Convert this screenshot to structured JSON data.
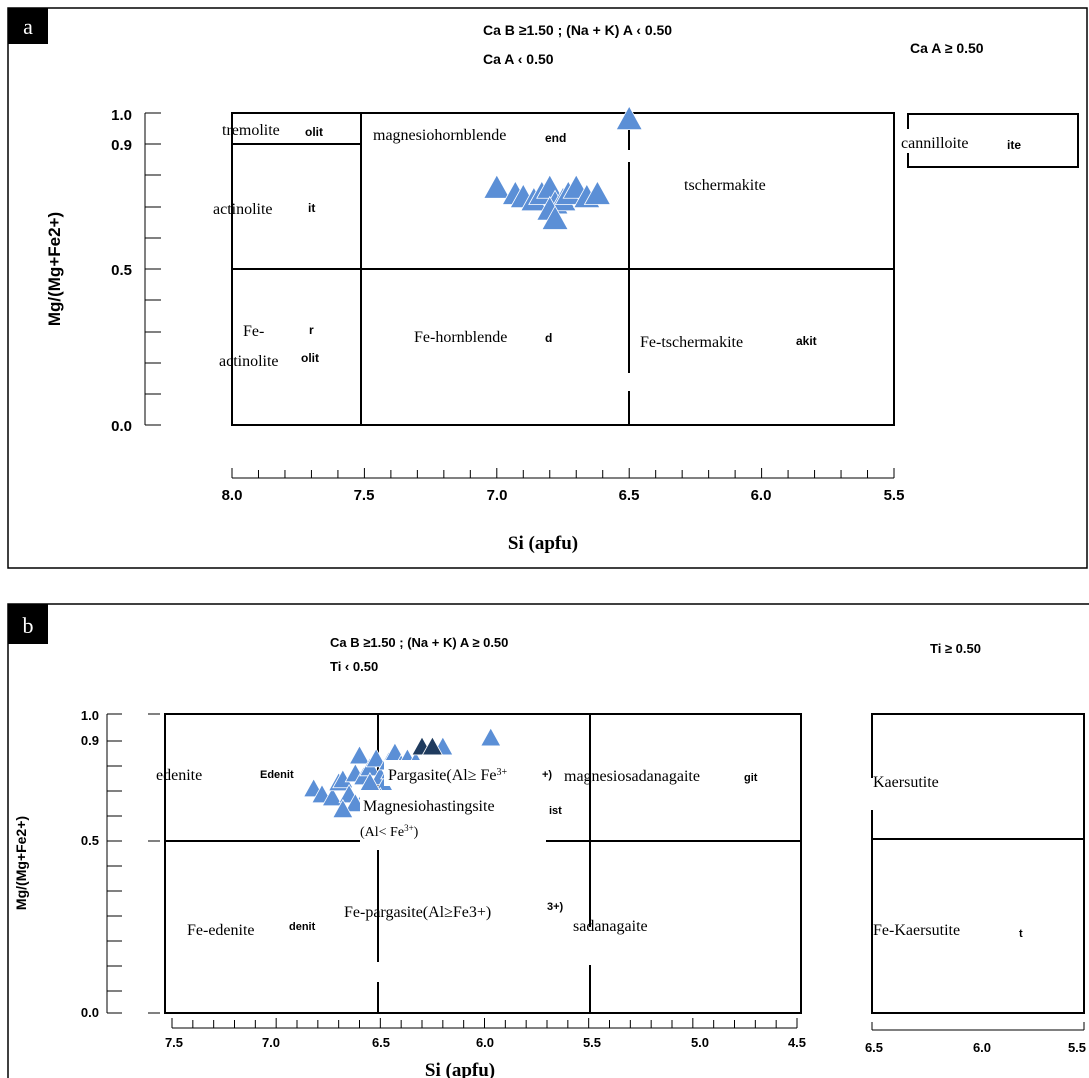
{
  "chart_data": [
    {
      "panel_label": "a",
      "type": "scatter",
      "xlabel": "Si (apfu)",
      "ylabel": "Mg/(Mg+Fe2+)",
      "xlim": [
        8.0,
        5.5
      ],
      "ylim": [
        0.0,
        1.0
      ],
      "x_inverted": true,
      "x_ticks": [
        "8.0",
        "7.5",
        "7.0",
        "6.5",
        "6.0",
        "5.5"
      ],
      "y_ticks": [
        "1.0",
        "0.9",
        "0.5",
        "0.0"
      ],
      "header": {
        "line1": "Ca B ≥1.50 ; (Na + K) A ‹ 0.50",
        "line2": "Ca A ‹ 0.50",
        "right": "Ca A ≥ 0.50"
      },
      "fields": [
        {
          "name": "tremolite",
          "frag": "olit"
        },
        {
          "name": "actinolite",
          "frag": "it"
        },
        {
          "name": "Fe-",
          "name2": "actinolite",
          "frag": "olit",
          "frag2": "r"
        },
        {
          "name": "magnesiohornblende",
          "frag": "end"
        },
        {
          "name": "Fe-hornblende",
          "frag": "d"
        },
        {
          "name": "tschermakite",
          "frag": ""
        },
        {
          "name": "Fe-tschermakite",
          "frag": "akit"
        },
        {
          "name": "cannilloite",
          "frag": "ite"
        }
      ],
      "series": [
        {
          "marker": "triangle",
          "color": "#5b8fd6",
          "points": [
            [
              6.5,
              0.98
            ],
            [
              7.0,
              0.76
            ],
            [
              6.93,
              0.74
            ],
            [
              6.9,
              0.73
            ],
            [
              6.86,
              0.72
            ],
            [
              6.83,
              0.74
            ],
            [
              6.8,
              0.76
            ],
            [
              6.78,
              0.71
            ],
            [
              6.75,
              0.72
            ],
            [
              6.73,
              0.74
            ],
            [
              6.7,
              0.76
            ],
            [
              6.66,
              0.73
            ],
            [
              6.62,
              0.74
            ],
            [
              6.8,
              0.69
            ],
            [
              6.78,
              0.66
            ]
          ]
        }
      ]
    },
    {
      "panel_label": "b",
      "type": "scatter",
      "xlabel": "Si (apfu)",
      "ylabel": "Mg/(Mg+Fe2+)",
      "xlim": [
        7.5,
        4.5
      ],
      "ylim": [
        0.0,
        1.0
      ],
      "x_inverted": true,
      "x_ticks": [
        "7.5",
        "7.0",
        "6.5",
        "6.0",
        "5.5",
        "5.0",
        "4.5"
      ],
      "y_ticks": [
        "1.0",
        "0.9",
        "0.5",
        "0.0"
      ],
      "header": {
        "line1": "Ca B ≥1.50 ; (Na + K) A ≥ 0.50",
        "line2": "Ti ‹ 0.50",
        "right": "Ti ≥ 0.50"
      },
      "fields": [
        {
          "name": "edenite",
          "frag": "Edenit"
        },
        {
          "name": "Fe-edenite",
          "frag": "denit"
        },
        {
          "name": "magnesiosadanagaite",
          "frag": "git"
        },
        {
          "name": "sadanagaite",
          "frag": ""
        },
        {
          "name": "Fe-pargasite(Al≥Fe3+)",
          "frag": "3+)"
        },
        {
          "name": "Magnesiohastingsite",
          "name2": "(Al< Fe",
          "sup": "3+",
          "tail": ")",
          "frag": "ist"
        },
        {
          "name": "Pargasite(Al≥ Fe",
          "sup": "3+",
          "frag": "+)"
        }
      ],
      "series": [
        {
          "marker": "triangle",
          "color": "#5b8fd6",
          "points": [
            [
              6.82,
              0.75
            ],
            [
              6.78,
              0.73
            ],
            [
              6.73,
              0.72
            ],
            [
              6.7,
              0.77
            ],
            [
              6.68,
              0.78
            ],
            [
              6.65,
              0.73
            ],
            [
              6.62,
              0.8
            ],
            [
              6.6,
              0.86
            ],
            [
              6.58,
              0.79
            ],
            [
              6.55,
              0.82
            ],
            [
              6.52,
              0.85
            ],
            [
              6.5,
              0.79
            ],
            [
              6.48,
              0.76
            ],
            [
              6.46,
              0.84
            ],
            [
              6.43,
              0.87
            ],
            [
              6.4,
              0.83
            ],
            [
              6.37,
              0.85
            ],
            [
              6.33,
              0.84
            ],
            [
              6.56,
              0.74
            ],
            [
              6.62,
              0.7
            ],
            [
              6.68,
              0.68
            ],
            [
              6.5,
              0.72
            ],
            [
              6.55,
              0.77
            ],
            [
              6.42,
              0.79
            ],
            [
              6.45,
              0.81
            ],
            [
              5.97,
              0.92
            ],
            [
              6.2,
              0.89
            ]
          ]
        },
        {
          "marker": "triangle",
          "color": "#1f3b5e",
          "points": [
            [
              6.3,
              0.89
            ],
            [
              6.25,
              0.89
            ]
          ]
        }
      ],
      "inset": {
        "xlim": [
          6.5,
          5.5
        ],
        "x_ticks": [
          "6.5",
          "6.0",
          "5.5"
        ],
        "fields": [
          {
            "name": "Kaersutite",
            "frag": ""
          },
          {
            "name": "Fe-Kaersutite",
            "frag": "t"
          }
        ]
      }
    }
  ]
}
